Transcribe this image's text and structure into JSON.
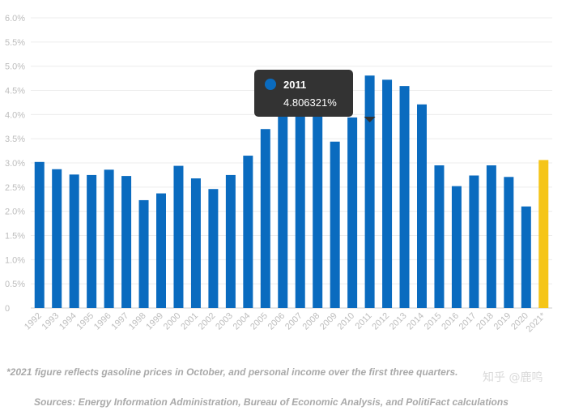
{
  "chart_data": {
    "type": "bar",
    "categories": [
      "1992",
      "1993",
      "1994",
      "1995",
      "1996",
      "1997",
      "1998",
      "1999",
      "2000",
      "2001",
      "2002",
      "2003",
      "2004",
      "2005",
      "2006",
      "2007",
      "2008",
      "2009",
      "2010",
      "2011",
      "2012",
      "2013",
      "2014",
      "2015",
      "2016",
      "2017",
      "2018",
      "2019",
      "2020",
      "2021*"
    ],
    "values": [
      3.02,
      2.87,
      2.76,
      2.75,
      2.86,
      2.73,
      2.23,
      2.37,
      2.94,
      2.68,
      2.46,
      2.75,
      3.15,
      3.7,
      3.98,
      4.1,
      4.12,
      3.44,
      3.94,
      4.806321,
      4.72,
      4.59,
      4.21,
      2.95,
      2.52,
      2.74,
      2.95,
      2.71,
      2.1,
      3.06
    ],
    "highlight_index": 29,
    "ylim": [
      0,
      6
    ],
    "yticks": [
      "0",
      "0.5%",
      "1.0%",
      "1.5%",
      "2.0%",
      "2.5%",
      "3.0%",
      "3.5%",
      "4.0%",
      "4.5%",
      "5.0%",
      "5.5%",
      "6.0%"
    ],
    "grid": true,
    "colors": {
      "bar": "#0a6bbf",
      "highlight": "#f5c518",
      "tooltip_bg": "#333333",
      "tooltip_dot": "#0a6bbf"
    },
    "tooltip": {
      "category": "2011",
      "value": "4.806321%"
    }
  },
  "footnote": "*2021 figure reflects gasoline prices in October, and personal income over the first three quarters.",
  "sources": "Sources: Energy Information Administration, Bureau of Economic Analysis, and PolitiFact calculations",
  "watermark": "知乎 @鹿鸣"
}
